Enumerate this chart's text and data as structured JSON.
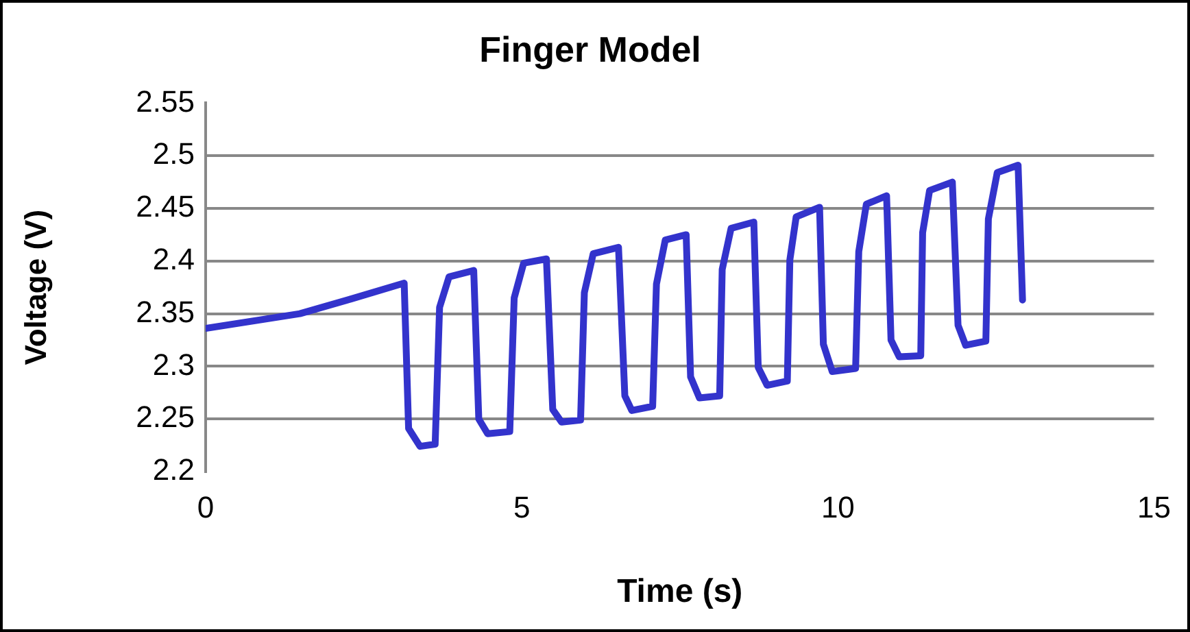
{
  "chart_data": {
    "type": "line",
    "title": "Finger Model",
    "xlabel": "Time (s)",
    "ylabel": "Voltage (V)",
    "xlim": [
      0,
      15
    ],
    "xticks": [
      0,
      5,
      10,
      15
    ],
    "ylim": [
      2.2,
      2.55
    ],
    "yticks": [
      2.2,
      2.25,
      2.3,
      2.35,
      2.4,
      2.45,
      2.5,
      2.55
    ],
    "grid": "y",
    "legend": false,
    "marker": "none",
    "line_style": "solid",
    "series": [
      {
        "color": "#3333cc",
        "x": [
          0,
          1.49,
          2.3,
          3.14,
          3.21,
          3.39,
          3.63,
          3.7,
          3.85,
          4.24,
          4.32,
          4.46,
          4.81,
          4.88,
          5.03,
          5.39,
          5.49,
          5.63,
          5.93,
          5.99,
          6.13,
          6.53,
          6.63,
          6.74,
          7.07,
          7.13,
          7.27,
          7.6,
          7.67,
          7.81,
          8.13,
          8.17,
          8.31,
          8.67,
          8.74,
          8.88,
          9.2,
          9.24,
          9.34,
          9.71,
          9.77,
          9.91,
          10.28,
          10.33,
          10.45,
          10.77,
          10.84,
          10.97,
          11.31,
          11.34,
          11.45,
          11.81,
          11.9,
          12.02,
          12.34,
          12.38,
          12.52,
          12.85,
          12.92
        ],
        "values": [
          2.336,
          2.35,
          2.364,
          2.379,
          2.241,
          2.224,
          2.226,
          2.356,
          2.385,
          2.391,
          2.25,
          2.236,
          2.238,
          2.365,
          2.398,
          2.402,
          2.259,
          2.247,
          2.249,
          2.37,
          2.407,
          2.413,
          2.272,
          2.258,
          2.262,
          2.378,
          2.42,
          2.425,
          2.29,
          2.27,
          2.272,
          2.392,
          2.431,
          2.437,
          2.299,
          2.282,
          2.286,
          2.401,
          2.442,
          2.451,
          2.321,
          2.295,
          2.298,
          2.409,
          2.454,
          2.462,
          2.325,
          2.309,
          2.31,
          2.427,
          2.467,
          2.475,
          2.339,
          2.32,
          2.324,
          2.44,
          2.484,
          2.491,
          2.363
        ]
      }
    ]
  }
}
